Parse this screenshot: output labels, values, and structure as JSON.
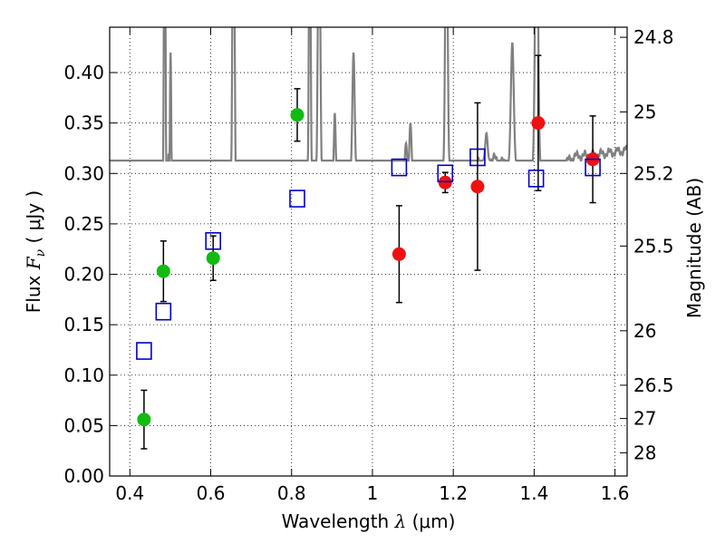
{
  "chart_data": {
    "type": "scatter",
    "xlabel": {
      "prefix": "Wavelength  ",
      "symbol": "λ",
      "suffix": " (μm)"
    },
    "ylabel": {
      "prefix": "Flux  ",
      "symbol": "F",
      "sub": "ν",
      "suffix": "  ( μJy )"
    },
    "y2label": "Magnitude (AB)",
    "xlim": [
      0.35,
      1.63
    ],
    "ylim": [
      0.0,
      0.445
    ],
    "grid": true,
    "x_ticks": [
      0.4,
      0.6,
      0.8,
      1.0,
      1.2,
      1.4,
      1.6
    ],
    "x_tick_labels": [
      "0.4",
      "0.6",
      "0.8",
      "1",
      "1.2",
      "1.4",
      "1.6"
    ],
    "y_ticks": [
      0.0,
      0.05,
      0.1,
      0.15,
      0.2,
      0.25,
      0.3,
      0.35,
      0.4
    ],
    "y_tick_labels": [
      "0.00",
      "0.05",
      "0.10",
      "0.15",
      "0.20",
      "0.25",
      "0.30",
      "0.35",
      "0.40"
    ],
    "right_ticks": [
      {
        "label": "24.8",
        "flux": 0.435
      },
      {
        "label": "25",
        "flux": 0.361
      },
      {
        "label": "25.2",
        "flux": 0.3
      },
      {
        "label": "25.5",
        "flux": 0.228
      },
      {
        "label": "26",
        "flux": 0.144
      },
      {
        "label": "26.5",
        "flux": 0.09
      },
      {
        "label": "27",
        "flux": 0.057
      },
      {
        "label": "28",
        "flux": 0.023
      }
    ],
    "colors": {
      "model": "#808080",
      "green": "#11bb11",
      "red": "#ee1111",
      "square": "#0000cc",
      "errorbar": "#000000"
    },
    "series": [
      {
        "name": "green photometry",
        "color": "green",
        "x": [
          0.435,
          0.483,
          0.606,
          0.814
        ],
        "y": [
          0.056,
          0.203,
          0.216,
          0.358
        ],
        "err": [
          0.029,
          0.03,
          0.022,
          0.026
        ]
      },
      {
        "name": "red photometry",
        "color": "red",
        "x": [
          1.066,
          1.18,
          1.26,
          1.41,
          1.545
        ],
        "y": [
          0.22,
          0.291,
          0.287,
          0.35,
          0.314
        ],
        "err": [
          0.048,
          0.01,
          0.083,
          0.067,
          0.043
        ]
      },
      {
        "name": "model band flux",
        "color": "square",
        "x": [
          0.435,
          0.483,
          0.606,
          0.814,
          1.066,
          1.18,
          1.26,
          1.405,
          1.545
        ],
        "y": [
          0.124,
          0.163,
          0.233,
          0.275,
          0.306,
          0.3,
          0.316,
          0.295,
          0.306
        ]
      }
    ],
    "model_spectrum": {
      "continuum": [
        [
          0.35,
          0.12
        ],
        [
          0.38,
          0.126
        ],
        [
          0.4,
          0.132
        ],
        [
          0.42,
          0.134
        ],
        [
          0.44,
          0.136
        ],
        [
          0.46,
          0.138
        ],
        [
          0.475,
          0.14
        ],
        [
          0.49,
          0.16
        ],
        [
          0.5,
          0.19
        ],
        [
          0.52,
          0.2
        ],
        [
          0.55,
          0.21
        ],
        [
          0.58,
          0.222
        ],
        [
          0.62,
          0.236
        ],
        [
          0.66,
          0.245
        ],
        [
          0.7,
          0.25
        ],
        [
          0.74,
          0.262
        ],
        [
          0.78,
          0.27
        ],
        [
          0.82,
          0.278
        ],
        [
          0.86,
          0.282
        ],
        [
          0.9,
          0.293
        ],
        [
          0.94,
          0.298
        ],
        [
          0.98,
          0.3
        ],
        [
          1.02,
          0.301
        ],
        [
          1.06,
          0.303
        ],
        [
          1.1,
          0.29
        ],
        [
          1.14,
          0.292
        ],
        [
          1.18,
          0.3
        ],
        [
          1.22,
          0.306
        ],
        [
          1.26,
          0.31
        ],
        [
          1.3,
          0.315
        ],
        [
          1.34,
          0.308
        ],
        [
          1.38,
          0.305
        ],
        [
          1.42,
          0.302
        ],
        [
          1.46,
          0.306
        ],
        [
          1.5,
          0.317
        ],
        [
          1.54,
          0.318
        ],
        [
          1.58,
          0.32
        ],
        [
          1.63,
          0.323
        ]
      ],
      "lines": [
        {
          "x": 0.4861,
          "peak": 0.6,
          "width": 0.0035
        },
        {
          "x": 0.4959,
          "peak": 0.32,
          "width": 0.003
        },
        {
          "x": 0.5007,
          "peak": 0.42,
          "width": 0.003
        },
        {
          "x": 0.6563,
          "peak": 0.6,
          "width": 0.004
        },
        {
          "x": 0.673,
          "peak": 0.29,
          "width": 0.003
        },
        {
          "x": 0.845,
          "peak": 0.6,
          "width": 0.003
        },
        {
          "x": 0.868,
          "peak": 0.6,
          "width": 0.004
        },
        {
          "x": 0.9069,
          "peak": 0.36,
          "width": 0.003
        },
        {
          "x": 0.9532,
          "peak": 0.42,
          "width": 0.004
        },
        {
          "x": 1.083,
          "peak": 0.33,
          "width": 0.004
        },
        {
          "x": 1.094,
          "peak": 0.35,
          "width": 0.004
        },
        {
          "x": 1.183,
          "peak": 0.6,
          "width": 0.004
        },
        {
          "x": 1.282,
          "peak": 0.34,
          "width": 0.004
        },
        {
          "x": 1.346,
          "peak": 0.43,
          "width": 0.005
        },
        {
          "x": 1.406,
          "peak": 0.6,
          "width": 0.005
        }
      ]
    }
  }
}
